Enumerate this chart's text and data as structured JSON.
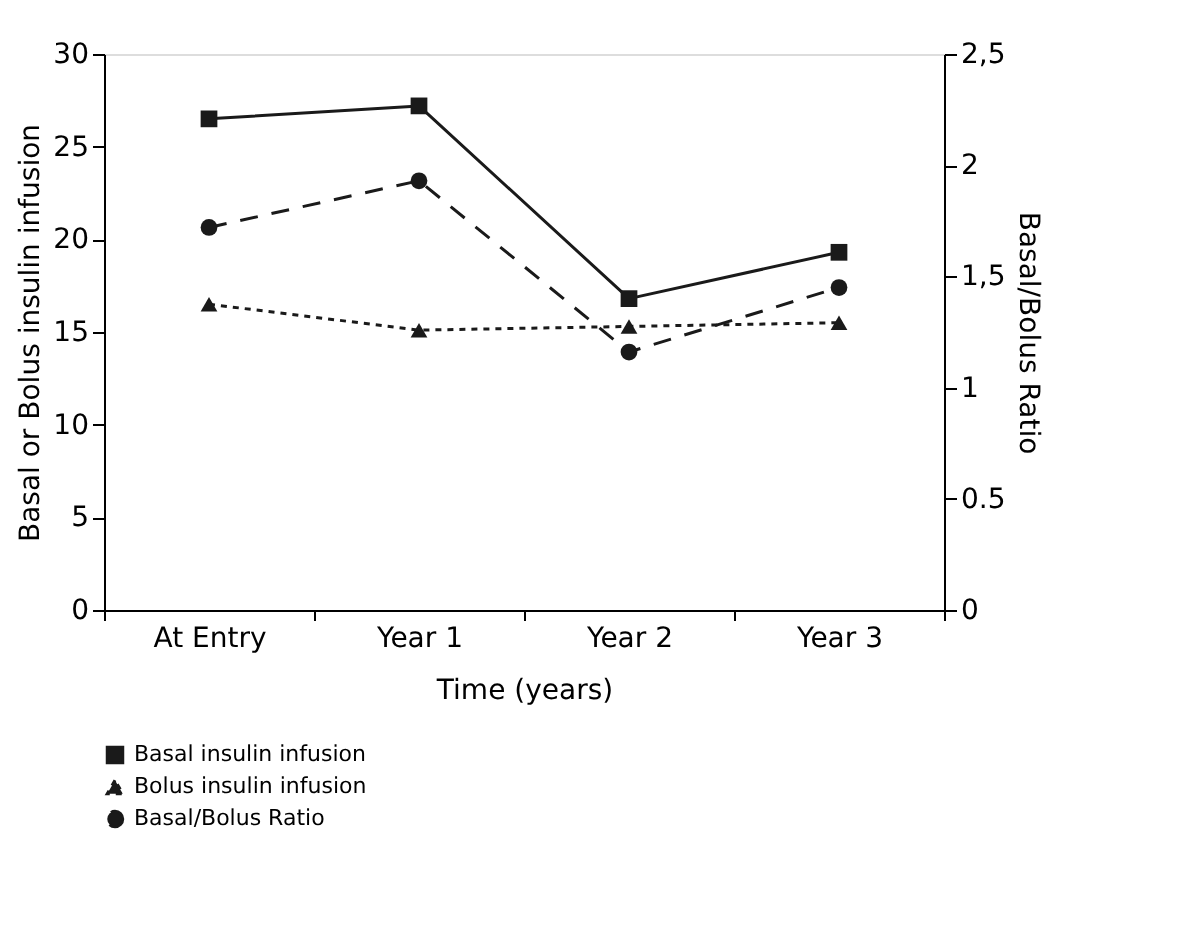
{
  "chart_data": {
    "type": "line",
    "xlabel": "Time (years)",
    "ylabel": "Basal or Bolus insulin infusion",
    "y2label": "Basal/Bolus Ratio",
    "categories": [
      "At Entry",
      "Year 1",
      "Year 2",
      "Year 3"
    ],
    "series": [
      {
        "name": "Basal insulin infusion",
        "color": "#1a1a1a",
        "marker": "square",
        "line_style": "solid",
        "values": [
          26.5,
          27.2,
          16.8,
          19.3
        ]
      },
      {
        "name": "Bolus insulin infusion",
        "color": "#1a1a1a",
        "marker": "triangle",
        "line_style": "dotted",
        "values": [
          16.5,
          15.1,
          15.3,
          15.5
        ]
      },
      {
        "name": "Basal/Bolus Ratio",
        "color": "#1a1a1a",
        "marker": "circle",
        "line_style": "dashed",
        "axis": "y2",
        "values": [
          1.72,
          1.93,
          1.16,
          1.45
        ]
      }
    ],
    "ylim": [
      0,
      30
    ],
    "yticks": [
      0,
      5,
      10,
      15,
      20,
      25,
      30
    ],
    "y2lim": [
      0,
      2.5
    ],
    "y2ticks": [
      0,
      {
        "value": 0.5,
        "label": "0.5"
      },
      1,
      {
        "value": 1.5,
        "label": "1,5"
      },
      2,
      {
        "value": 2.5,
        "label": "2,5"
      }
    ],
    "grid": false,
    "legend": "bottom left"
  }
}
